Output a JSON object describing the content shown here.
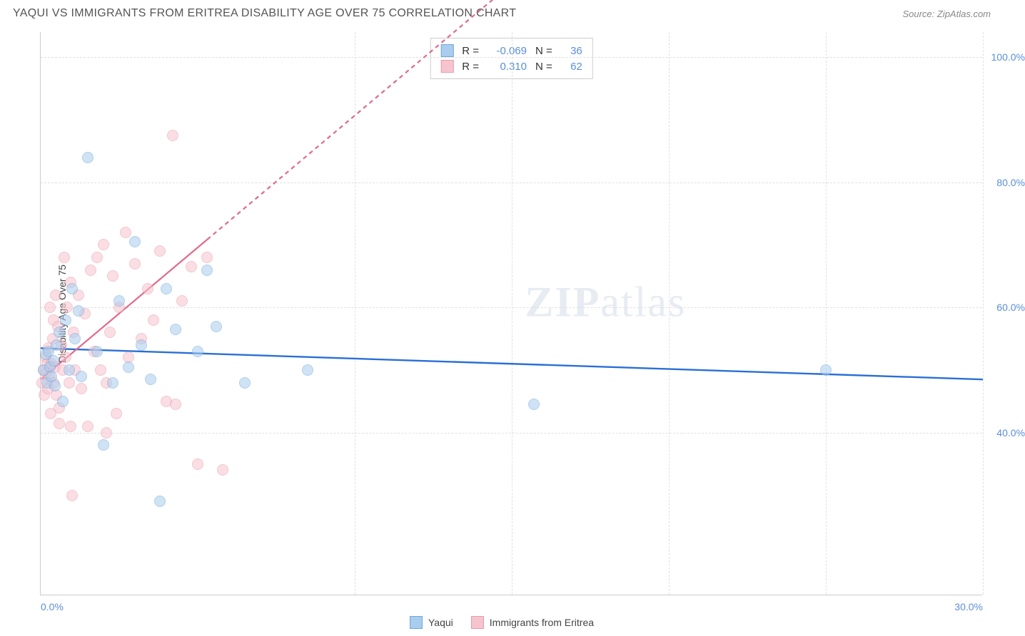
{
  "header": {
    "title": "YAQUI VS IMMIGRANTS FROM ERITREA DISABILITY AGE OVER 75 CORRELATION CHART",
    "source": "Source: ZipAtlas.com"
  },
  "watermark": {
    "zip": "ZIP",
    "atlas": "atlas"
  },
  "y_label": "Disability Age Over 75",
  "chart": {
    "type": "scatter",
    "xlim": [
      0,
      30
    ],
    "ylim": [
      14,
      104
    ],
    "xticks": [
      {
        "v": 0,
        "label": "0.0%"
      },
      {
        "v": 10,
        "label": ""
      },
      {
        "v": 15,
        "label": ""
      },
      {
        "v": 20,
        "label": ""
      },
      {
        "v": 25,
        "label": ""
      },
      {
        "v": 30,
        "label": "30.0%"
      }
    ],
    "yticks": [
      {
        "v": 40,
        "label": "40.0%"
      },
      {
        "v": 60,
        "label": "60.0%"
      },
      {
        "v": 80,
        "label": "80.0%"
      },
      {
        "v": 100,
        "label": "100.0%"
      }
    ],
    "grid_color": "#e0e0e0",
    "background_color": "#ffffff",
    "marker_radius": 8,
    "marker_opacity": 0.55,
    "series": [
      {
        "name": "Yaqui",
        "fill": "#a9cdee",
        "stroke": "#6fa8dc",
        "trend": {
          "color": "#2a6fd6",
          "width": 2.4,
          "dash": "none",
          "y0": 53.5,
          "y1": 48.5
        },
        "points": [
          [
            0.1,
            50
          ],
          [
            0.15,
            52.5
          ],
          [
            0.2,
            48
          ],
          [
            0.25,
            53
          ],
          [
            0.3,
            50.5
          ],
          [
            0.35,
            49
          ],
          [
            0.4,
            51.5
          ],
          [
            0.45,
            47.5
          ],
          [
            0.5,
            54
          ],
          [
            0.6,
            56
          ],
          [
            0.7,
            45
          ],
          [
            0.8,
            58
          ],
          [
            0.9,
            50
          ],
          [
            1.0,
            63
          ],
          [
            1.1,
            55
          ],
          [
            1.2,
            59.5
          ],
          [
            1.3,
            49
          ],
          [
            1.5,
            84
          ],
          [
            1.8,
            53
          ],
          [
            2.0,
            38
          ],
          [
            2.3,
            48
          ],
          [
            2.5,
            61
          ],
          [
            2.8,
            50.5
          ],
          [
            3.0,
            70.5
          ],
          [
            3.2,
            54
          ],
          [
            3.5,
            48.5
          ],
          [
            3.8,
            29
          ],
          [
            4.0,
            63
          ],
          [
            4.3,
            56.5
          ],
          [
            5.0,
            53
          ],
          [
            5.3,
            66
          ],
          [
            5.6,
            57
          ],
          [
            6.5,
            48
          ],
          [
            8.5,
            50
          ],
          [
            15.7,
            44.5
          ],
          [
            25.0,
            50
          ]
        ]
      },
      {
        "name": "Immigrants from Eritrea",
        "fill": "#f6c4cf",
        "stroke": "#e89aac",
        "trend": {
          "color": "#e06a8a",
          "width": 2.2,
          "dash": "6,5",
          "y0": 48.5,
          "y1": 175,
          "solid_until_x": 5.3
        },
        "points": [
          [
            0.05,
            48
          ],
          [
            0.1,
            50
          ],
          [
            0.12,
            46
          ],
          [
            0.15,
            52
          ],
          [
            0.18,
            49.5
          ],
          [
            0.2,
            51
          ],
          [
            0.22,
            47
          ],
          [
            0.25,
            53.5
          ],
          [
            0.28,
            49
          ],
          [
            0.3,
            60
          ],
          [
            0.32,
            43
          ],
          [
            0.35,
            51
          ],
          [
            0.38,
            55
          ],
          [
            0.4,
            48
          ],
          [
            0.42,
            58
          ],
          [
            0.45,
            50.5
          ],
          [
            0.48,
            62
          ],
          [
            0.5,
            46
          ],
          [
            0.55,
            57
          ],
          [
            0.6,
            44
          ],
          [
            0.65,
            54
          ],
          [
            0.7,
            50
          ],
          [
            0.75,
            68
          ],
          [
            0.8,
            52
          ],
          [
            0.85,
            60
          ],
          [
            0.9,
            48
          ],
          [
            0.95,
            64
          ],
          [
            1.0,
            30
          ],
          [
            1.05,
            56
          ],
          [
            1.1,
            50
          ],
          [
            1.2,
            62
          ],
          [
            1.3,
            47
          ],
          [
            1.4,
            59
          ],
          [
            1.5,
            41
          ],
          [
            1.6,
            66
          ],
          [
            1.7,
            53
          ],
          [
            1.8,
            68
          ],
          [
            1.9,
            50
          ],
          [
            2.0,
            70
          ],
          [
            2.1,
            48
          ],
          [
            2.2,
            56
          ],
          [
            2.3,
            65
          ],
          [
            2.4,
            43
          ],
          [
            2.5,
            60
          ],
          [
            2.7,
            72
          ],
          [
            2.8,
            52
          ],
          [
            3.0,
            67
          ],
          [
            3.2,
            55
          ],
          [
            3.4,
            63
          ],
          [
            3.6,
            58
          ],
          [
            3.8,
            69
          ],
          [
            4.0,
            45
          ],
          [
            4.2,
            87.5
          ],
          [
            4.5,
            61
          ],
          [
            4.8,
            66.5
          ],
          [
            5.0,
            35
          ],
          [
            5.3,
            68
          ],
          [
            5.8,
            34
          ],
          [
            4.3,
            44.5
          ],
          [
            0.95,
            41
          ],
          [
            2.1,
            40
          ],
          [
            0.6,
            41.5
          ]
        ]
      }
    ],
    "stats": [
      {
        "series": 0,
        "r": "-0.069",
        "n": "36"
      },
      {
        "series": 1,
        "r": "0.310",
        "n": "62"
      }
    ],
    "stats_labels": {
      "r": "R =",
      "n": "N ="
    }
  },
  "legend": {
    "items": [
      {
        "label": "Yaqui",
        "fill": "#a9cdee",
        "stroke": "#6fa8dc"
      },
      {
        "label": "Immigrants from Eritrea",
        "fill": "#f6c4cf",
        "stroke": "#e89aac"
      }
    ]
  }
}
